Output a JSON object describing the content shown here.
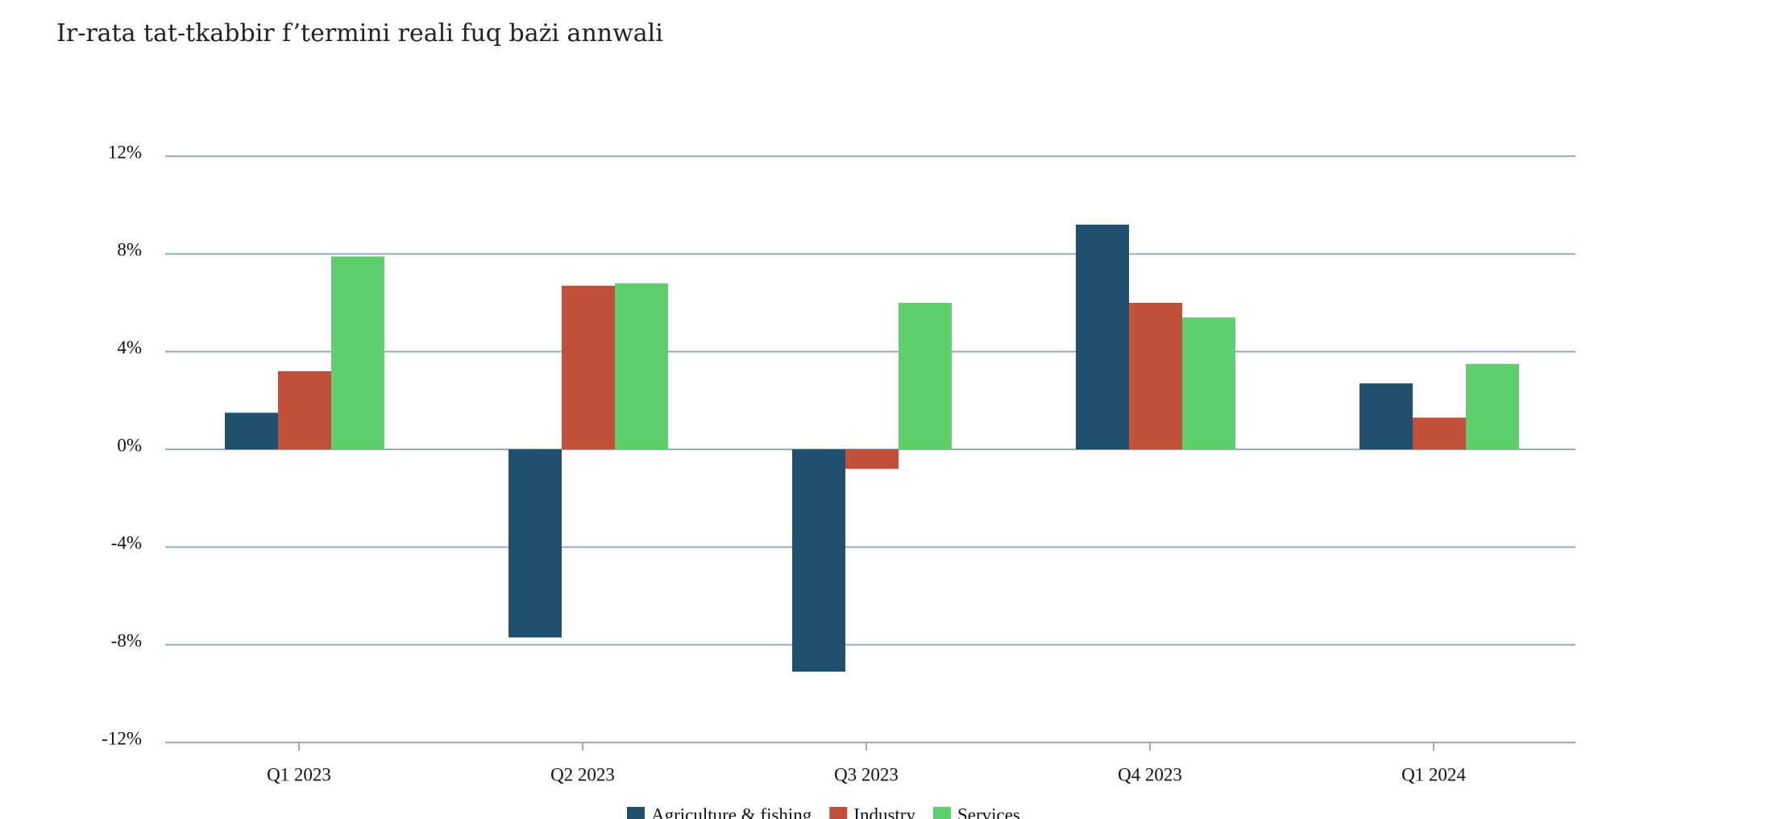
{
  "chart_data": {
    "type": "bar",
    "title": "Ir-rata tat-tkabbir f’termini reali fuq bażi annwali",
    "categories": [
      "Q1 2023",
      "Q2 2023",
      "Q3 2023",
      "Q4 2023",
      "Q1 2024"
    ],
    "series": [
      {
        "name": "Agriculture & fishing",
        "color": "#1f506e",
        "values": [
          1.5,
          -7.7,
          -9.1,
          9.2,
          2.7
        ]
      },
      {
        "name": "Industry",
        "color": "#c0503a",
        "values": [
          3.2,
          6.7,
          -0.8,
          6.0,
          1.3
        ]
      },
      {
        "name": "Services",
        "color": "#5fcf6e",
        "values": [
          7.9,
          6.8,
          6.0,
          5.4,
          3.5
        ]
      }
    ],
    "ylim": [
      -12,
      12
    ],
    "yticks": [
      {
        "value": -12,
        "label": "-12%"
      },
      {
        "value": -8,
        "label": "-8%"
      },
      {
        "value": -4,
        "label": "-4%"
      },
      {
        "value": 0,
        "label": "0%"
      },
      {
        "value": 4,
        "label": "4%"
      },
      {
        "value": 8,
        "label": "8%"
      },
      {
        "value": 12,
        "label": "12%"
      }
    ],
    "grid": true,
    "legend": "bottom"
  }
}
